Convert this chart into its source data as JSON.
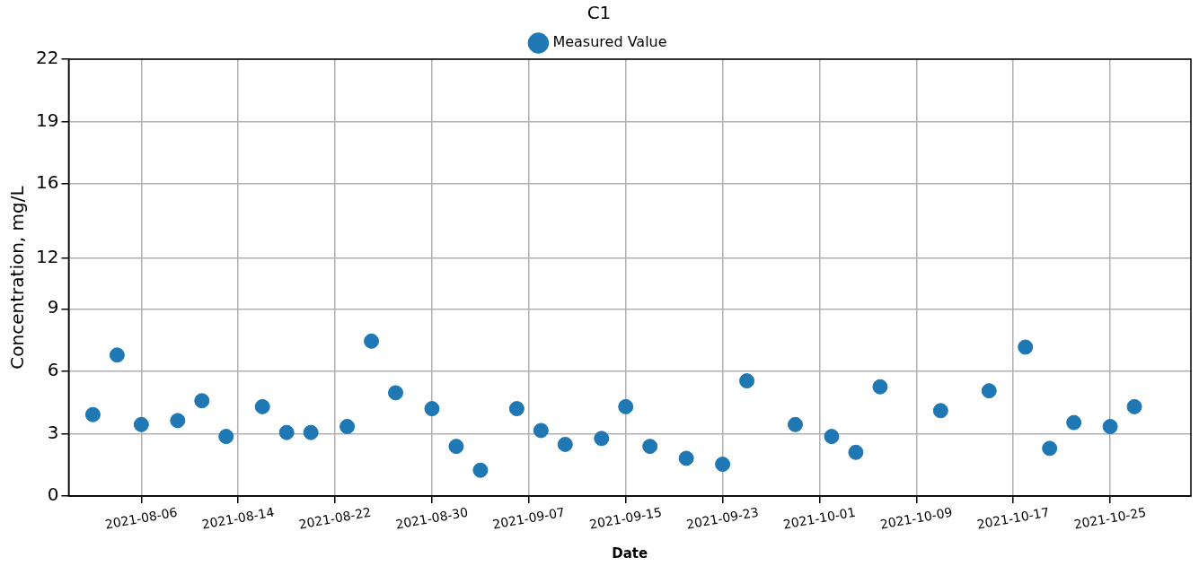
{
  "chart_data": {
    "type": "scatter",
    "legend_title": "C1",
    "xlabel": "Date",
    "ylabel": "Concentration, mg/L",
    "series": [
      {
        "name": "Measured Value",
        "color": "#1f77b4",
        "x": [
          "2021-08-02",
          "2021-08-04",
          "2021-08-06",
          "2021-08-09",
          "2021-08-11",
          "2021-08-13",
          "2021-08-16",
          "2021-08-18",
          "2021-08-20",
          "2021-08-23",
          "2021-08-25",
          "2021-08-27",
          "2021-08-30",
          "2021-09-01",
          "2021-09-03",
          "2021-09-06",
          "2021-09-08",
          "2021-09-10",
          "2021-09-13",
          "2021-09-15",
          "2021-09-17",
          "2021-09-20",
          "2021-09-23",
          "2021-09-25",
          "2021-09-29",
          "2021-10-02",
          "2021-10-04",
          "2021-10-06",
          "2021-10-11",
          "2021-10-15",
          "2021-10-18",
          "2021-10-20",
          "2021-10-22",
          "2021-10-25",
          "2021-10-27"
        ],
        "values": [
          4.1,
          7.1,
          3.6,
          3.8,
          4.8,
          3.0,
          4.5,
          3.2,
          3.2,
          3.5,
          7.8,
          5.2,
          4.4,
          2.5,
          1.3,
          4.4,
          3.3,
          2.6,
          2.9,
          4.5,
          2.5,
          1.9,
          1.6,
          5.8,
          3.6,
          3.0,
          2.2,
          5.5,
          4.3,
          5.3,
          7.5,
          2.4,
          3.7,
          3.5,
          4.5
        ]
      }
    ],
    "xlim": [
      "2021-07-31",
      "2021-10-31T16:00"
    ],
    "xticks": [
      "2021-08-06",
      "2021-08-14",
      "2021-08-22",
      "2021-08-30",
      "2021-09-07",
      "2021-09-15",
      "2021-09-23",
      "2021-10-01",
      "2021-10-09",
      "2021-10-17",
      "2021-10-25"
    ],
    "ylim": [
      0,
      22
    ],
    "yticks": [
      0,
      {
        "value": 3.142857,
        "label": "3"
      },
      {
        "value": 6.285714,
        "label": "6"
      },
      {
        "value": 9.428571,
        "label": "9"
      },
      12,
      {
        "value": 15.714286,
        "label": "16"
      },
      {
        "value": 18.857143,
        "label": "19"
      },
      22
    ],
    "grid": true,
    "legend": "top",
    "marker": "circle"
  }
}
